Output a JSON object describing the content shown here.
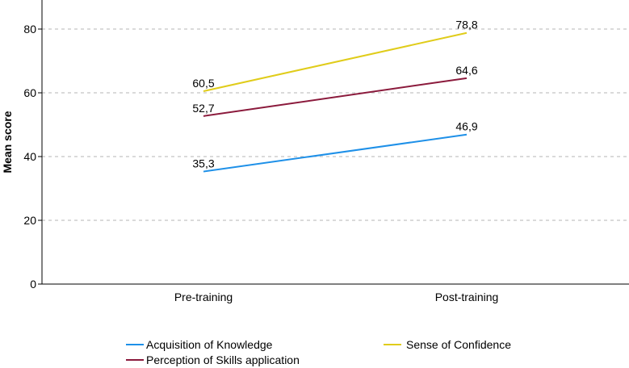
{
  "chart_data": {
    "type": "line",
    "title": "",
    "xlabel": "",
    "ylabel": "Mean score",
    "categories": [
      "Pre-training",
      "Post-training"
    ],
    "ylim": [
      0,
      90
    ],
    "yticks": [
      0,
      20,
      40,
      60,
      80
    ],
    "grid": true,
    "legend_position": "bottom",
    "series": [
      {
        "name": "Acquisition of Knowledge",
        "color": "#1E90E8",
        "values": [
          35.3,
          46.9
        ],
        "labels": [
          "35,3",
          "46,9"
        ]
      },
      {
        "name": "Sense of Confidence",
        "color": "#E0CC1A",
        "values": [
          60.5,
          78.8
        ],
        "labels": [
          "60,5",
          "78,8"
        ]
      },
      {
        "name": "Perception of Skills application",
        "color": "#8B1A3C",
        "values": [
          52.7,
          64.6
        ],
        "labels": [
          "52,7",
          "64,6"
        ]
      }
    ]
  }
}
